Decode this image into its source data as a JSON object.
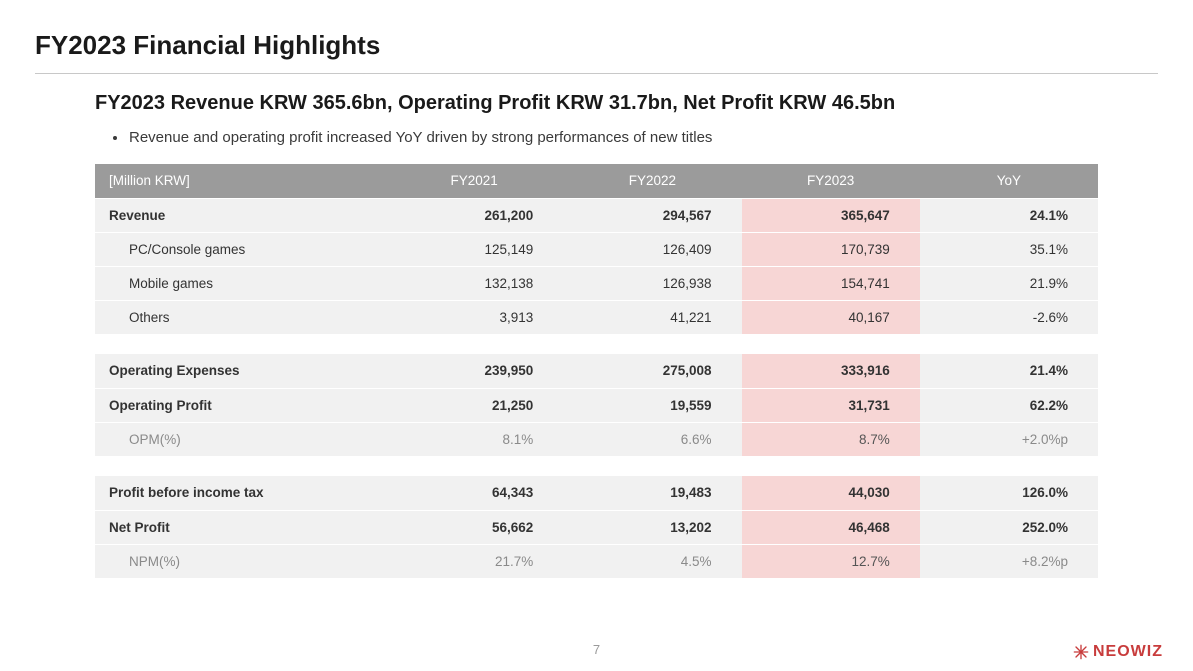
{
  "slide": {
    "title": "FY2023 Financial Highlights",
    "headline": "FY2023 Revenue KRW 365.6bn, Operating Profit KRW 31.7bn, Net Profit KRW 46.5bn",
    "bullet": "Revenue and operating profit increased YoY driven by strong performances of new titles",
    "page_number": "7"
  },
  "brand": {
    "name": "NEOWIZ",
    "color": "#c83c3c"
  },
  "table": {
    "unit_label": "[Million KRW]",
    "columns": [
      "FY2021",
      "FY2022",
      "FY2023",
      "YoY"
    ],
    "highlight_column_index": 2,
    "colors": {
      "header_bg": "#9b9b9b",
      "header_text": "#ffffff",
      "row_bg": "#f1f1f1",
      "highlight_bg": "#f7d6d5",
      "text": "#333333",
      "muted_text": "#8a8a8a"
    },
    "groups": [
      {
        "rows": [
          {
            "label": "Revenue",
            "bold": true,
            "sub": false,
            "values": [
              "261,200",
              "294,567",
              "365,647",
              "24.1%"
            ]
          },
          {
            "label": "PC/Console games",
            "bold": false,
            "sub": true,
            "values": [
              "125,149",
              "126,409",
              "170,739",
              "35.1%"
            ]
          },
          {
            "label": "Mobile games",
            "bold": false,
            "sub": true,
            "values": [
              "132,138",
              "126,938",
              "154,741",
              "21.9%"
            ]
          },
          {
            "label": "Others",
            "bold": false,
            "sub": true,
            "values": [
              "3,913",
              "41,221",
              "40,167",
              "-2.6%"
            ]
          }
        ]
      },
      {
        "rows": [
          {
            "label": "Operating Expenses",
            "bold": true,
            "sub": false,
            "values": [
              "239,950",
              "275,008",
              "333,916",
              "21.4%"
            ]
          },
          {
            "label": "Operating Profit",
            "bold": true,
            "sub": false,
            "values": [
              "21,250",
              "19,559",
              "31,731",
              "62.2%"
            ]
          },
          {
            "label": "OPM(%)",
            "bold": false,
            "sub": true,
            "muted": true,
            "values": [
              "8.1%",
              "6.6%",
              "8.7%",
              "+2.0%p"
            ]
          }
        ]
      },
      {
        "rows": [
          {
            "label": "Profit before income tax",
            "bold": true,
            "sub": false,
            "values": [
              "64,343",
              "19,483",
              "44,030",
              "126.0%"
            ]
          },
          {
            "label": "Net Profit",
            "bold": true,
            "sub": false,
            "values": [
              "56,662",
              "13,202",
              "46,468",
              "252.0%"
            ]
          },
          {
            "label": "NPM(%)",
            "bold": false,
            "sub": true,
            "muted": true,
            "values": [
              "21.7%",
              "4.5%",
              "12.7%",
              "+8.2%p"
            ]
          }
        ]
      }
    ]
  }
}
